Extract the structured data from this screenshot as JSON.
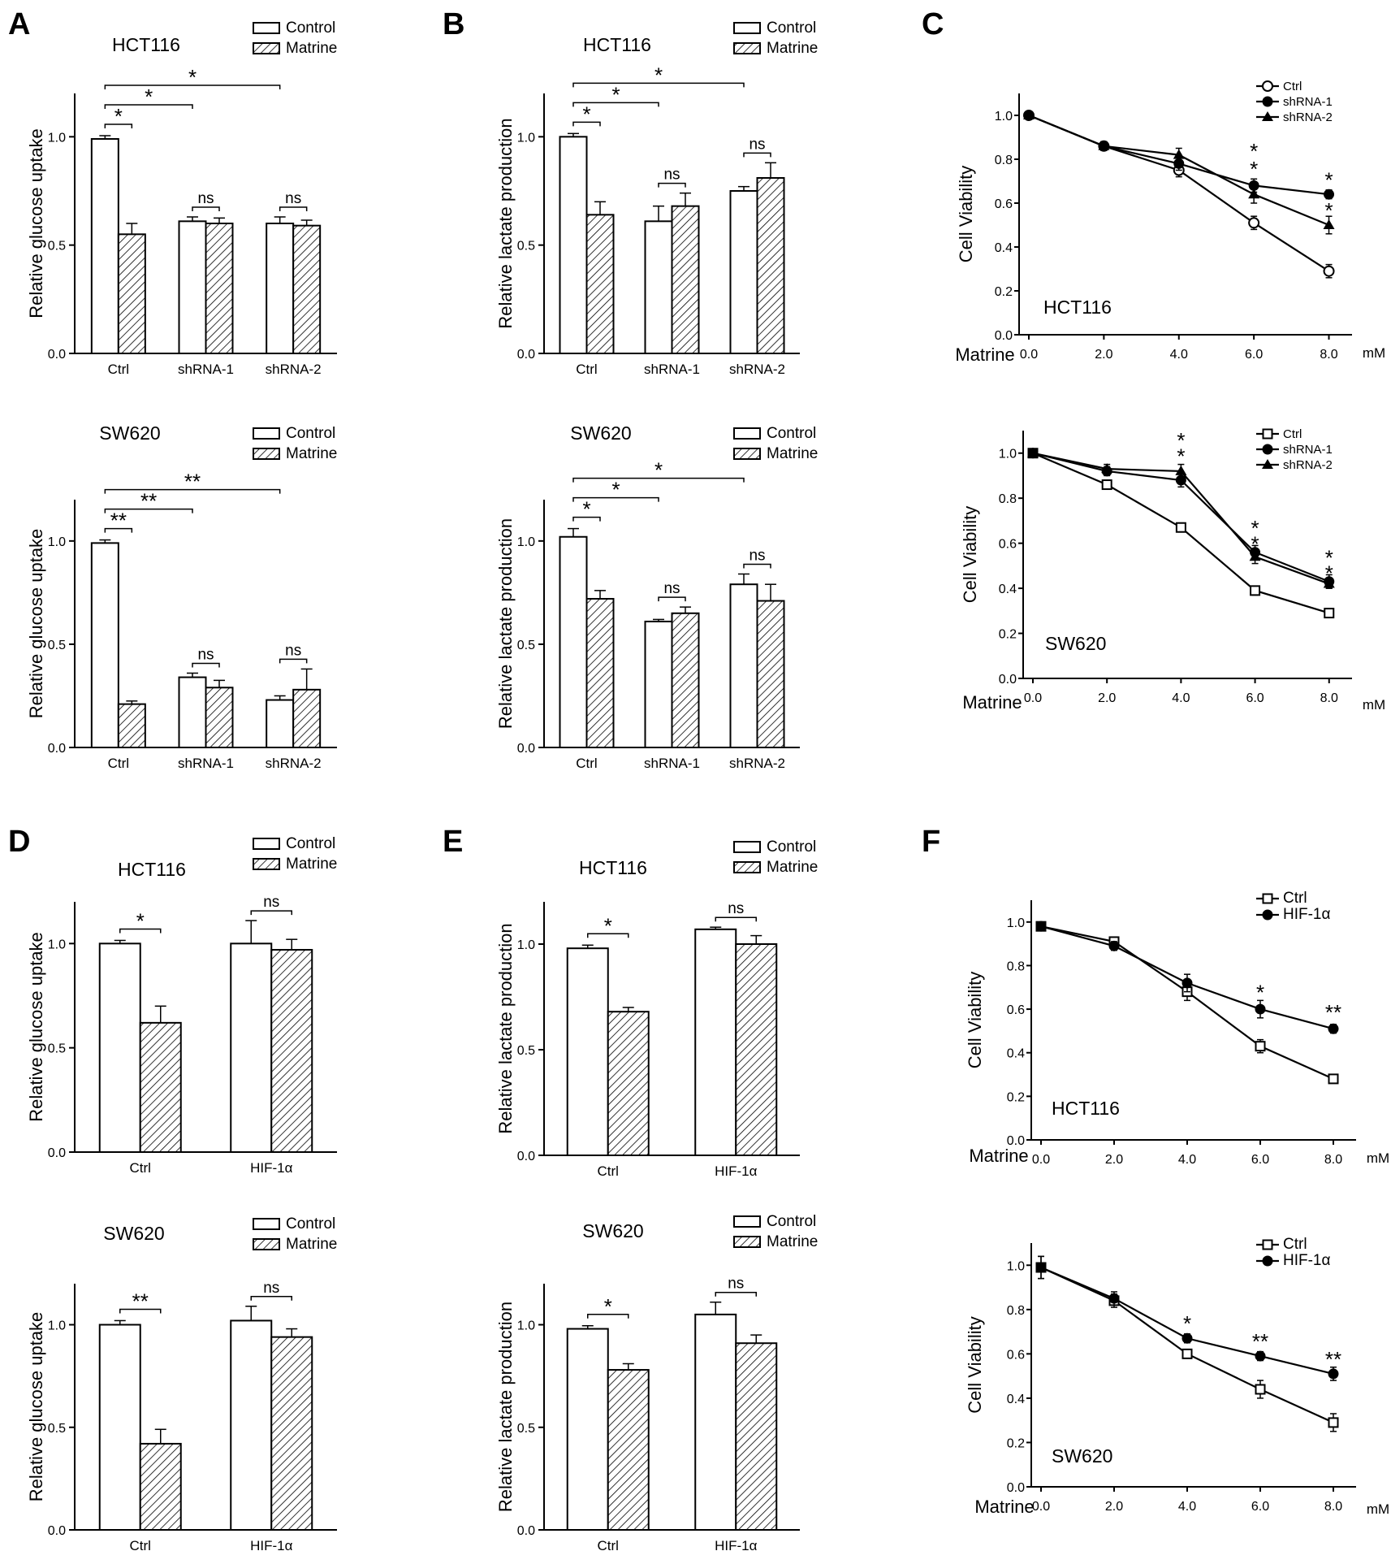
{
  "panel_labels": {
    "A": "A",
    "B": "B",
    "C": "C",
    "D": "D",
    "E": "E",
    "F": "F"
  },
  "legend_bar": {
    "control": "Control",
    "matrine": "Matrine"
  },
  "x_prefix": "Matrine",
  "x_unit": "mM",
  "chart_data": [
    {
      "id": "A1",
      "type": "bar",
      "panel": "A",
      "title": "HCT116",
      "ylabel": "Relative glucose uptake",
      "categories": [
        "Ctrl",
        "shRNA-1",
        "shRNA-2"
      ],
      "ylim": [
        0,
        1.2
      ],
      "yticks": [
        "0.0",
        "0.5",
        "1.0"
      ],
      "series": [
        {
          "name": "Control",
          "values": [
            0.99,
            0.61,
            0.6
          ],
          "errors": [
            0.015,
            0.02,
            0.03
          ]
        },
        {
          "name": "Matrine",
          "values": [
            0.55,
            0.6,
            0.59
          ],
          "errors": [
            0.05,
            0.025,
            0.025
          ]
        }
      ],
      "sig": [
        {
          "from": 0,
          "to": 0,
          "label": "*",
          "level": 0
        },
        {
          "from": 0,
          "to": 1,
          "label": "*",
          "level": 1
        },
        {
          "from": 0,
          "to": 2,
          "label": "*",
          "level": 2
        }
      ],
      "ns": [
        {
          "cat": 1,
          "label": "ns"
        },
        {
          "cat": 2,
          "label": "ns"
        }
      ]
    },
    {
      "id": "A2",
      "type": "bar",
      "panel": "A",
      "title": "SW620",
      "ylabel": "Relative glucose uptake",
      "categories": [
        "Ctrl",
        "shRNA-1",
        "shRNA-2"
      ],
      "ylim": [
        0,
        1.2
      ],
      "yticks": [
        "0.0",
        "0.5",
        "1.0"
      ],
      "series": [
        {
          "name": "Control",
          "values": [
            0.99,
            0.34,
            0.23
          ],
          "errors": [
            0.015,
            0.02,
            0.02
          ]
        },
        {
          "name": "Matrine",
          "values": [
            0.21,
            0.29,
            0.28
          ],
          "errors": [
            0.015,
            0.035,
            0.1
          ]
        }
      ],
      "sig": [
        {
          "from": 0,
          "to": 0,
          "label": "**",
          "level": 0
        },
        {
          "from": 0,
          "to": 1,
          "label": "**",
          "level": 1
        },
        {
          "from": 0,
          "to": 2,
          "label": "**",
          "level": 2
        }
      ],
      "ns": [
        {
          "cat": 1,
          "label": "ns"
        },
        {
          "cat": 2,
          "label": "ns"
        }
      ]
    },
    {
      "id": "B1",
      "type": "bar",
      "panel": "B",
      "title": "HCT116",
      "ylabel": "Relative lactate production",
      "categories": [
        "Ctrl",
        "shRNA-1",
        "shRNA-2"
      ],
      "ylim": [
        0,
        1.2
      ],
      "yticks": [
        "0.0",
        "0.5",
        "1.0"
      ],
      "series": [
        {
          "name": "Control",
          "values": [
            1.0,
            0.61,
            0.75
          ],
          "errors": [
            0.015,
            0.07,
            0.02
          ]
        },
        {
          "name": "Matrine",
          "values": [
            0.64,
            0.68,
            0.81
          ],
          "errors": [
            0.06,
            0.06,
            0.07
          ]
        }
      ],
      "sig": [
        {
          "from": 0,
          "to": 0,
          "label": "*",
          "level": 0
        },
        {
          "from": 0,
          "to": 1,
          "label": "*",
          "level": 1
        },
        {
          "from": 0,
          "to": 2,
          "label": "*",
          "level": 2
        }
      ],
      "ns": [
        {
          "cat": 1,
          "label": "ns"
        },
        {
          "cat": 2,
          "label": "ns"
        }
      ]
    },
    {
      "id": "B2",
      "type": "bar",
      "panel": "B",
      "title": "SW620",
      "ylabel": "Relative lactate production",
      "categories": [
        "Ctrl",
        "shRNA-1",
        "shRNA-2"
      ],
      "ylim": [
        0,
        1.2
      ],
      "yticks": [
        "0.0",
        "0.5",
        "1.0"
      ],
      "series": [
        {
          "name": "Control",
          "values": [
            1.02,
            0.61,
            0.79
          ],
          "errors": [
            0.04,
            0.01,
            0.05
          ]
        },
        {
          "name": "Matrine",
          "values": [
            0.72,
            0.65,
            0.71
          ],
          "errors": [
            0.04,
            0.03,
            0.08
          ]
        }
      ],
      "sig": [
        {
          "from": 0,
          "to": 0,
          "label": "*",
          "level": 0
        },
        {
          "from": 0,
          "to": 1,
          "label": "*",
          "level": 1
        },
        {
          "from": 0,
          "to": 2,
          "label": "*",
          "level": 2
        }
      ],
      "ns": [
        {
          "cat": 1,
          "label": "ns"
        },
        {
          "cat": 2,
          "label": "ns"
        }
      ]
    },
    {
      "id": "C1",
      "type": "line",
      "panel": "C",
      "title": "HCT116",
      "ylabel": "Cell Viability",
      "x": [
        0,
        2,
        4,
        6,
        8
      ],
      "xticks": [
        "0.0",
        "2.0",
        "4.0",
        "6.0",
        "8.0"
      ],
      "ylim": [
        0,
        1.1
      ],
      "yticks": [
        "0.0",
        "0.2",
        "0.4",
        "0.6",
        "0.8",
        "1.0"
      ],
      "series": [
        {
          "name": "Ctrl",
          "marker": "circle-open",
          "values": [
            1.0,
            0.86,
            0.75,
            0.51,
            0.29
          ],
          "errors": [
            0.01,
            0.02,
            0.03,
            0.03,
            0.03
          ]
        },
        {
          "name": "shRNA-1",
          "marker": "circle-filled",
          "values": [
            1.0,
            0.86,
            0.78,
            0.68,
            0.64
          ],
          "errors": [
            0.01,
            0.02,
            0.03,
            0.03,
            0.02
          ]
        },
        {
          "name": "shRNA-2",
          "marker": "triangle",
          "values": [
            1.0,
            0.86,
            0.82,
            0.64,
            0.5
          ],
          "errors": [
            0.01,
            0.02,
            0.03,
            0.04,
            0.04
          ]
        }
      ],
      "annotations": [
        {
          "x": 6,
          "y": 0.84,
          "label": "*"
        },
        {
          "x": 6,
          "y": 0.76,
          "label": "*"
        },
        {
          "x": 8,
          "y": 0.71,
          "label": "*"
        },
        {
          "x": 8,
          "y": 0.57,
          "label": "*"
        }
      ]
    },
    {
      "id": "C2",
      "type": "line",
      "panel": "C",
      "title": "SW620",
      "ylabel": "Cell Viability",
      "x": [
        0,
        2,
        4,
        6,
        8
      ],
      "xticks": [
        "0.0",
        "2.0",
        "4.0",
        "6.0",
        "8.0"
      ],
      "ylim": [
        0,
        1.1
      ],
      "yticks": [
        "0.0",
        "0.2",
        "0.4",
        "0.6",
        "0.8",
        "1.0"
      ],
      "series": [
        {
          "name": "Ctrl",
          "marker": "square-open",
          "values": [
            1.0,
            0.86,
            0.67,
            0.39,
            0.29
          ],
          "errors": [
            0.01,
            0.02,
            0.02,
            0.02,
            0.01
          ]
        },
        {
          "name": "shRNA-1",
          "marker": "circle-filled",
          "values": [
            1.0,
            0.92,
            0.88,
            0.56,
            0.43
          ],
          "errors": [
            0.01,
            0.02,
            0.03,
            0.03,
            0.03
          ]
        },
        {
          "name": "shRNA-2",
          "marker": "triangle",
          "values": [
            1.0,
            0.93,
            0.92,
            0.54,
            0.42
          ],
          "errors": [
            0.01,
            0.02,
            0.03,
            0.03,
            0.02
          ]
        }
      ],
      "annotations": [
        {
          "x": 4,
          "y": 1.06,
          "label": "*"
        },
        {
          "x": 4,
          "y": 0.99,
          "label": "*"
        },
        {
          "x": 6,
          "y": 0.67,
          "label": "*"
        },
        {
          "x": 6,
          "y": 0.6,
          "label": "*"
        },
        {
          "x": 8,
          "y": 0.54,
          "label": "*"
        },
        {
          "x": 8,
          "y": 0.47,
          "label": "*"
        }
      ]
    },
    {
      "id": "D1",
      "type": "bar",
      "panel": "D",
      "title": "HCT116",
      "ylabel": "Relative glucose uptake",
      "categories": [
        "Ctrl",
        "HIF-1α"
      ],
      "ylim": [
        0,
        1.2
      ],
      "yticks": [
        "0.0",
        "0.5",
        "1.0"
      ],
      "series": [
        {
          "name": "Control",
          "values": [
            1.0,
            1.0
          ],
          "errors": [
            0.015,
            0.11
          ]
        },
        {
          "name": "Matrine",
          "values": [
            0.62,
            0.97
          ],
          "errors": [
            0.08,
            0.05
          ]
        }
      ],
      "sig": [
        {
          "from": 0,
          "to": 0,
          "label": "*",
          "level": 0
        }
      ],
      "ns": [
        {
          "cat": 1,
          "label": "ns"
        }
      ]
    },
    {
      "id": "D2",
      "type": "bar",
      "panel": "D",
      "title": "SW620",
      "ylabel": "Relative glucose uptake",
      "categories": [
        "Ctrl",
        "HIF-1α"
      ],
      "ylim": [
        0,
        1.2
      ],
      "yticks": [
        "0.0",
        "0.5",
        "1.0"
      ],
      "series": [
        {
          "name": "Control",
          "values": [
            1.0,
            1.02
          ],
          "errors": [
            0.02,
            0.07
          ]
        },
        {
          "name": "Matrine",
          "values": [
            0.42,
            0.94
          ],
          "errors": [
            0.07,
            0.04
          ]
        }
      ],
      "sig": [
        {
          "from": 0,
          "to": 0,
          "label": "**",
          "level": 0
        }
      ],
      "ns": [
        {
          "cat": 1,
          "label": "ns"
        }
      ]
    },
    {
      "id": "E1",
      "type": "bar",
      "panel": "E",
      "title": "HCT116",
      "ylabel": "Relative lactate production",
      "categories": [
        "Ctrl",
        "HIF-1α"
      ],
      "ylim": [
        0,
        1.2
      ],
      "yticks": [
        "0.0",
        "0.5",
        "1.0"
      ],
      "series": [
        {
          "name": "Control",
          "values": [
            0.98,
            1.07
          ],
          "errors": [
            0.015,
            0.01
          ]
        },
        {
          "name": "Matrine",
          "values": [
            0.68,
            1.0
          ],
          "errors": [
            0.02,
            0.04
          ]
        }
      ],
      "sig": [
        {
          "from": 0,
          "to": 0,
          "label": "*",
          "level": 0
        }
      ],
      "ns": [
        {
          "cat": 1,
          "label": "ns"
        }
      ]
    },
    {
      "id": "E2",
      "type": "bar",
      "panel": "E",
      "title": "SW620",
      "ylabel": "Relative lactate production",
      "categories": [
        "Ctrl",
        "HIF-1α"
      ],
      "ylim": [
        0,
        1.2
      ],
      "yticks": [
        "0.0",
        "0.5",
        "1.0"
      ],
      "series": [
        {
          "name": "Control",
          "values": [
            0.98,
            1.05
          ],
          "errors": [
            0.015,
            0.06
          ]
        },
        {
          "name": "Matrine",
          "values": [
            0.78,
            0.91
          ],
          "errors": [
            0.03,
            0.04
          ]
        }
      ],
      "sig": [
        {
          "from": 0,
          "to": 0,
          "label": "*",
          "level": 0
        }
      ],
      "ns": [
        {
          "cat": 1,
          "label": "ns"
        }
      ]
    },
    {
      "id": "F1",
      "type": "line",
      "panel": "F",
      "title": "HCT116",
      "ylabel": "Cell Viability",
      "x": [
        0,
        2,
        4,
        6,
        8
      ],
      "xticks": [
        "0.0",
        "2.0",
        "4.0",
        "6.0",
        "8.0"
      ],
      "ylim": [
        0,
        1.1
      ],
      "yticks": [
        "0.0",
        "0.2",
        "0.4",
        "0.6",
        "0.8",
        "1.0"
      ],
      "series": [
        {
          "name": "Ctrl",
          "marker": "square-open",
          "values": [
            0.98,
            0.91,
            0.68,
            0.43,
            0.28
          ],
          "errors": [
            0.01,
            0.02,
            0.04,
            0.03,
            0.01
          ]
        },
        {
          "name": "HIF-1α",
          "marker": "circle-filled",
          "values": [
            0.98,
            0.89,
            0.72,
            0.6,
            0.51
          ],
          "errors": [
            0.01,
            0.02,
            0.04,
            0.04,
            0.02
          ]
        }
      ],
      "annotations": [
        {
          "x": 6,
          "y": 0.68,
          "label": "*"
        },
        {
          "x": 8,
          "y": 0.59,
          "label": "**"
        }
      ]
    },
    {
      "id": "F2",
      "type": "line",
      "panel": "F",
      "title": "SW620",
      "ylabel": "Cell Viability",
      "x": [
        0,
        2,
        4,
        6,
        8
      ],
      "xticks": [
        "0.0",
        "2.0",
        "4.0",
        "6.0",
        "8.0"
      ],
      "ylim": [
        0,
        1.1
      ],
      "yticks": [
        "0.0",
        "0.2",
        "0.4",
        "0.6",
        "0.8",
        "1.0"
      ],
      "series": [
        {
          "name": "Ctrl",
          "marker": "square-open",
          "values": [
            0.99,
            0.84,
            0.6,
            0.44,
            0.29
          ],
          "errors": [
            0.05,
            0.03,
            0.01,
            0.04,
            0.04
          ]
        },
        {
          "name": "HIF-1α",
          "marker": "circle-filled",
          "values": [
            0.99,
            0.85,
            0.67,
            0.59,
            0.51
          ],
          "errors": [
            0.05,
            0.03,
            0.02,
            0.02,
            0.03
          ]
        }
      ],
      "annotations": [
        {
          "x": 4,
          "y": 0.74,
          "label": "*"
        },
        {
          "x": 6,
          "y": 0.66,
          "label": "**"
        },
        {
          "x": 8,
          "y": 0.58,
          "label": "**"
        }
      ]
    }
  ]
}
